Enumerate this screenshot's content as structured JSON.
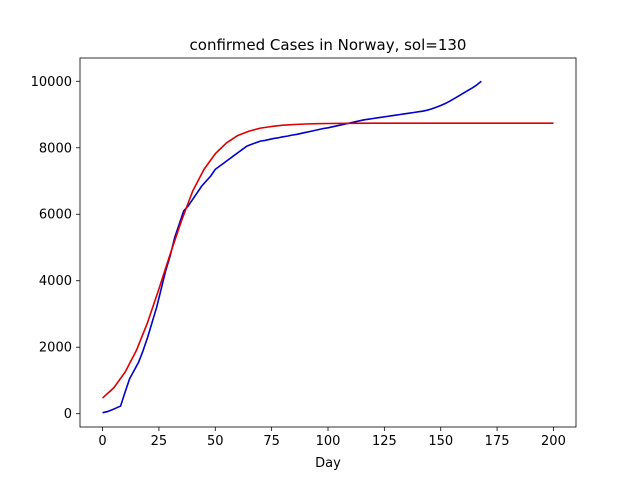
{
  "chart_data": {
    "type": "line",
    "title": "confirmed Cases in Norway, sol=130",
    "xlabel": "Day",
    "ylabel": "",
    "xlim": [
      -10,
      210
    ],
    "ylim": [
      -400,
      10700
    ],
    "xticks": [
      0,
      25,
      50,
      75,
      100,
      125,
      150,
      175,
      200
    ],
    "yticks": [
      0,
      2000,
      4000,
      6000,
      8000,
      10000
    ],
    "grid": false,
    "series": [
      {
        "color": "#0000cc",
        "x": [
          0,
          2,
          4,
          6,
          8,
          10,
          12,
          14,
          16,
          18,
          20,
          22,
          24,
          26,
          28,
          30,
          32,
          34,
          36,
          38,
          40,
          42,
          44,
          46,
          48,
          50,
          52,
          54,
          56,
          58,
          60,
          62,
          64,
          66,
          68,
          70,
          72,
          74,
          76,
          78,
          80,
          82,
          84,
          86,
          88,
          90,
          92,
          94,
          96,
          98,
          100,
          102,
          104,
          106,
          108,
          110,
          112,
          114,
          116,
          118,
          120,
          122,
          124,
          126,
          128,
          130,
          132,
          134,
          136,
          138,
          140,
          142,
          144,
          146,
          148,
          150,
          152,
          154,
          156,
          158,
          160,
          162,
          164,
          166,
          168
        ],
        "y": [
          30,
          60,
          110,
          170,
          230,
          650,
          1050,
          1300,
          1550,
          1900,
          2300,
          2750,
          3200,
          3750,
          4300,
          4750,
          5300,
          5700,
          6100,
          6250,
          6450,
          6650,
          6850,
          7000,
          7150,
          7350,
          7450,
          7550,
          7650,
          7750,
          7850,
          7950,
          8050,
          8100,
          8150,
          8200,
          8220,
          8250,
          8280,
          8300,
          8330,
          8350,
          8380,
          8400,
          8430,
          8460,
          8490,
          8520,
          8550,
          8580,
          8600,
          8630,
          8660,
          8690,
          8720,
          8750,
          8780,
          8810,
          8840,
          8860,
          8880,
          8900,
          8920,
          8940,
          8960,
          8980,
          9000,
          9020,
          9040,
          9060,
          9080,
          9100,
          9130,
          9170,
          9220,
          9270,
          9330,
          9400,
          9480,
          9560,
          9640,
          9720,
          9800,
          9890,
          10000
        ]
      },
      {
        "color": "#dd0000",
        "x": [
          0,
          5,
          10,
          15,
          20,
          25,
          30,
          35,
          40,
          45,
          50,
          55,
          60,
          65,
          70,
          75,
          80,
          85,
          90,
          95,
          100,
          110,
          120,
          130,
          140,
          150,
          160,
          170,
          180,
          190,
          200
        ],
        "y": [
          470,
          780,
          1250,
          1900,
          2750,
          3750,
          4800,
          5800,
          6700,
          7350,
          7820,
          8150,
          8370,
          8500,
          8590,
          8640,
          8680,
          8700,
          8715,
          8725,
          8730,
          8735,
          8738,
          8740,
          8740,
          8740,
          8740,
          8740,
          8740,
          8740,
          8740
        ]
      }
    ]
  }
}
